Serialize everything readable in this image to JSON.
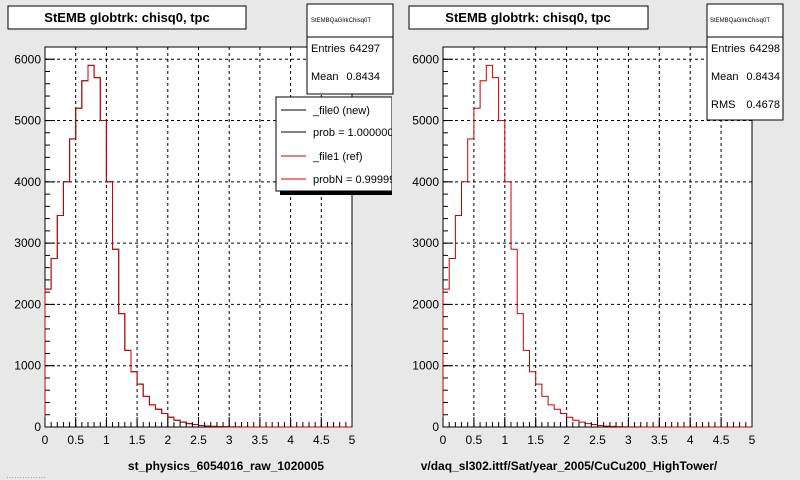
{
  "footer_left": "……………",
  "colors": {
    "background": "#e8e8e8",
    "frame": "#ffffff",
    "grid": "#000000",
    "new_hist": "#000000",
    "ref_hist": "#cc0000"
  },
  "chart_data": [
    {
      "type": "bar",
      "title": "StEMB globtrk: chisq0, tpc",
      "xlabel": "st_physics_6054016_raw_1020005",
      "ylabel": "",
      "xlim": [
        0,
        5
      ],
      "ylim": [
        0,
        6200
      ],
      "x_ticks": [
        "0",
        "0.5",
        "1",
        "1.5",
        "2",
        "2.5",
        "3",
        "3.5",
        "4",
        "4.5",
        "5"
      ],
      "y_ticks": [
        "0",
        "1000",
        "2000",
        "3000",
        "4000",
        "5000",
        "6000"
      ],
      "grid": true,
      "bin_width": 0.1,
      "bin_edges_start": 0.0,
      "series": [
        {
          "name": "_file1 (ref)",
          "values": [
            2250,
            2750,
            3450,
            4000,
            4700,
            5200,
            5650,
            5900,
            5700,
            5000,
            4000,
            2900,
            1850,
            1250,
            900,
            700,
            500,
            360,
            290,
            220,
            160,
            110,
            80,
            55,
            40,
            25,
            15,
            10,
            6,
            4,
            2,
            1,
            0,
            0,
            0,
            0,
            0,
            0,
            0,
            0,
            0,
            0,
            0,
            0,
            0,
            0,
            0,
            0,
            0,
            0
          ]
        }
      ],
      "stats_box": {
        "label": "StEMBQaGlrkChisq0T",
        "rows": [
          {
            "name": "Entries",
            "value": "64297"
          },
          {
            "name": "Mean",
            "value": "0.8434"
          }
        ]
      },
      "legend": {
        "placement": "top-right",
        "entries": [
          {
            "label": "_file0 (new)",
            "color": "#000000"
          },
          {
            "label": "prob = 1.000000",
            "color": "#000000"
          },
          {
            "label": "_file1 (ref)",
            "color": "#cc0000"
          },
          {
            "label": "probN = 0.999999",
            "color": "#cc0000"
          }
        ]
      }
    },
    {
      "type": "bar",
      "title": "StEMB globtrk: chisq0, tpc",
      "xlabel": "v/daq_sl302.ittf/Sat/year_2005/CuCu200_HighTower/",
      "ylabel": "",
      "xlim": [
        0,
        5
      ],
      "ylim": [
        0,
        6200
      ],
      "x_ticks": [
        "0",
        "0.5",
        "1",
        "1.5",
        "2",
        "2.5",
        "3",
        "3.5",
        "4",
        "4.5",
        "5"
      ],
      "y_ticks": [
        "0",
        "1000",
        "2000",
        "3000",
        "4000",
        "5000",
        "6000"
      ],
      "grid": true,
      "bin_width": 0.1,
      "bin_edges_start": 0.0,
      "series": [
        {
          "name": "",
          "values": [
            2250,
            2750,
            3450,
            4000,
            4700,
            5200,
            5650,
            5900,
            5700,
            5000,
            4000,
            2900,
            1850,
            1250,
            900,
            700,
            500,
            360,
            290,
            220,
            160,
            110,
            80,
            55,
            40,
            25,
            15,
            10,
            6,
            4,
            2,
            1,
            0,
            0,
            0,
            0,
            0,
            0,
            0,
            0,
            0,
            0,
            0,
            0,
            0,
            0,
            0,
            0,
            0,
            0
          ]
        }
      ],
      "stats_box": {
        "label": "StEMBQaGlrkChisq0T",
        "rows": [
          {
            "name": "Entries",
            "value": "64298"
          },
          {
            "name": "Mean",
            "value": "0.8434"
          },
          {
            "name": "RMS",
            "value": "0.4678"
          }
        ]
      }
    }
  ]
}
